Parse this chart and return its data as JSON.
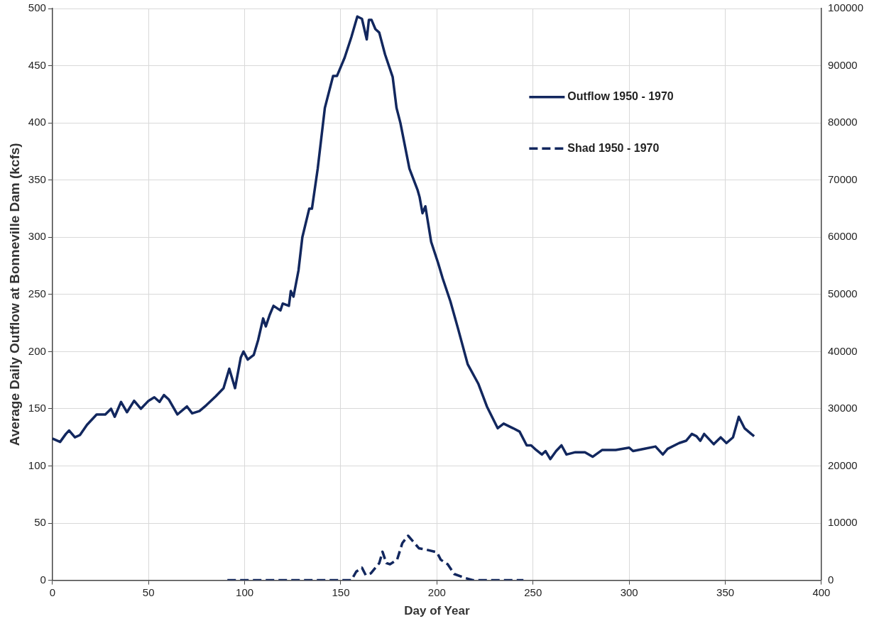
{
  "chart_data": {
    "type": "line",
    "xlabel": "Day of Year",
    "ylabel": "Average Daily Outflow at Bonneville Dam (kcfs)",
    "xlim": [
      0,
      400
    ],
    "xticks": [
      0,
      50,
      100,
      150,
      200,
      250,
      300,
      350,
      400
    ],
    "ylim": [
      0,
      500
    ],
    "yticks": [
      0,
      50,
      100,
      150,
      200,
      250,
      300,
      350,
      400,
      450,
      500
    ],
    "y2lim": [
      0,
      100000
    ],
    "y2ticks": [
      0,
      10000,
      20000,
      30000,
      40000,
      50000,
      60000,
      70000,
      80000,
      90000,
      100000
    ],
    "grid": true,
    "legend": "top right",
    "marker": "none",
    "series": [
      {
        "name": "Outflow 1950 - 1970",
        "color": "#12275e",
        "line_style": "solid",
        "x": [
          0,
          4,
          7,
          8.7,
          11.7,
          14.3,
          18,
          23,
          27.5,
          30.5,
          32.4,
          35.7,
          38.8,
          42.5,
          46,
          50,
          53,
          55.7,
          58,
          60.6,
          65,
          70,
          72.7,
          76.5,
          80,
          85,
          89,
          92,
          95,
          98,
          99.4,
          101.6,
          104.7,
          107,
          109.6,
          111,
          113,
          115,
          118.6,
          119.8,
          123,
          124,
          125.4,
          128,
          130,
          133.6,
          135,
          138,
          141.7,
          146,
          148,
          152,
          155.5,
          158.6,
          161,
          163.5,
          164.6,
          166,
          168,
          170,
          173,
          177,
          179,
          181,
          185.7,
          190,
          191,
          192.5,
          194,
          197,
          200.7,
          203,
          207,
          211,
          216,
          221.5,
          226,
          231.6,
          234.7,
          239.6,
          243,
          246.7,
          249,
          251.6,
          254.6,
          256.5,
          259,
          262,
          264.8,
          267.4,
          272,
          277,
          281,
          286,
          293,
          300,
          302,
          308,
          313.7,
          317.5,
          320,
          326,
          329.6,
          332.6,
          335,
          337,
          339,
          344,
          347.6,
          350.6,
          354,
          357,
          360,
          363.5,
          365
        ],
        "values": [
          124,
          121,
          128,
          131,
          125,
          127,
          136,
          145,
          145,
          150,
          143,
          156,
          147,
          157,
          150,
          157,
          160,
          156,
          162,
          158,
          145,
          152,
          146,
          148,
          153,
          161,
          168,
          185,
          168,
          195,
          200,
          193,
          197,
          210,
          229,
          222,
          232,
          240,
          236,
          242,
          240,
          253,
          248,
          271,
          300,
          325,
          325,
          360,
          413,
          441,
          441,
          457,
          475,
          493,
          491,
          473,
          490,
          490,
          482,
          479,
          460,
          440,
          413,
          400,
          360,
          341,
          335,
          321,
          327,
          296,
          277,
          264,
          244,
          220,
          189,
          172,
          152,
          133,
          137,
          133,
          130,
          118,
          118,
          114,
          110,
          113,
          106,
          113,
          118,
          110,
          112,
          112,
          108,
          114,
          114,
          116,
          113,
          115,
          117,
          110,
          115,
          120,
          122,
          128,
          126,
          122,
          128,
          119,
          125,
          120,
          125,
          143,
          133,
          128,
          126
        ]
      },
      {
        "name": "Shad 1950 - 1970",
        "color": "#12275e",
        "line_style": "dashed",
        "axis": "y2",
        "x": [
          91,
          155.5,
          158,
          161,
          163,
          165.6,
          170,
          171.7,
          173.7,
          175.6,
          179.3,
          182,
          185,
          187.6,
          190.6,
          194,
          200,
          202,
          205.6,
          209,
          214.7,
          219,
          245
        ],
        "values": [
          0,
          0,
          1500,
          2200,
          900,
          1200,
          3000,
          5000,
          3000,
          2800,
          3600,
          6500,
          7800,
          6800,
          5600,
          5400,
          4900,
          3600,
          2800,
          1100,
          400,
          0,
          0
        ]
      }
    ]
  }
}
